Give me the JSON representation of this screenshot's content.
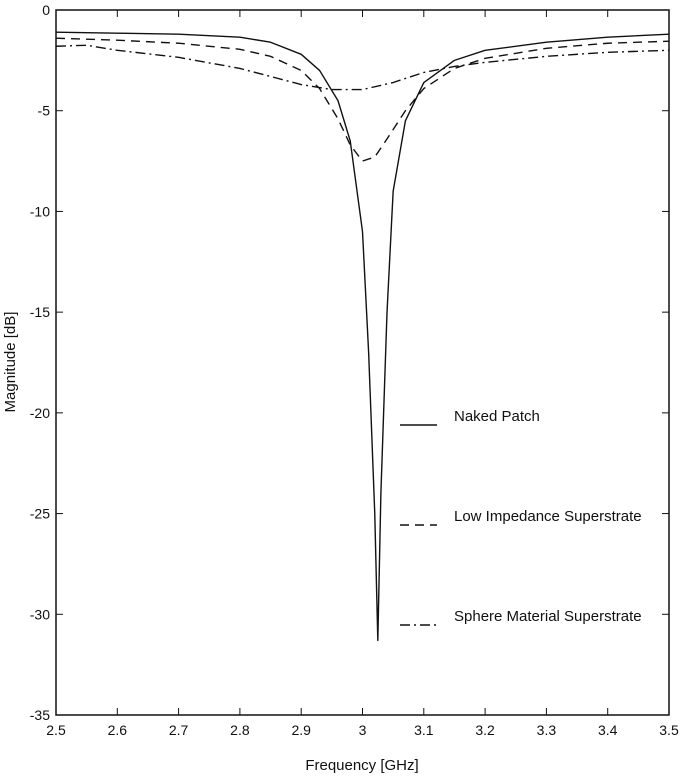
{
  "chart_data": {
    "type": "line",
    "title": "",
    "xlabel": "Frequency  [GHz]",
    "ylabel": "Magnitude  [dB]",
    "xlim": [
      2.5,
      3.5
    ],
    "ylim": [
      -35,
      0
    ],
    "xticks": [
      2.5,
      2.6,
      2.7,
      2.8,
      2.9,
      3,
      3.1,
      3.2,
      3.3,
      3.4,
      3.5
    ],
    "xtick_labels": [
      "2.5",
      "2.6",
      "2.7",
      "2.8",
      "2.9",
      "3",
      "3.1",
      "3.2",
      "3.3",
      "3.4",
      "3.5"
    ],
    "yticks": [
      0,
      -5,
      -10,
      -15,
      -20,
      -25,
      -30,
      -35
    ],
    "ytick_labels": [
      "0",
      "-5",
      "-10",
      "-15",
      "-20",
      "-25",
      "-30",
      "-35"
    ],
    "grid": false,
    "legend_position": "center-right",
    "series": [
      {
        "name": "Naked Patch",
        "style": "solid",
        "color": "#111111",
        "points": [
          [
            2.5,
            -1.1
          ],
          [
            2.6,
            -1.15
          ],
          [
            2.7,
            -1.2
          ],
          [
            2.8,
            -1.35
          ],
          [
            2.85,
            -1.6
          ],
          [
            2.9,
            -2.2
          ],
          [
            2.93,
            -3.0
          ],
          [
            2.96,
            -4.5
          ],
          [
            2.98,
            -6.5
          ],
          [
            3.0,
            -11.0
          ],
          [
            3.01,
            -17.0
          ],
          [
            3.02,
            -25.0
          ],
          [
            3.025,
            -31.3
          ],
          [
            3.03,
            -24.0
          ],
          [
            3.04,
            -15.0
          ],
          [
            3.05,
            -9.0
          ],
          [
            3.07,
            -5.5
          ],
          [
            3.1,
            -3.6
          ],
          [
            3.15,
            -2.5
          ],
          [
            3.2,
            -2.0
          ],
          [
            3.3,
            -1.6
          ],
          [
            3.4,
            -1.35
          ],
          [
            3.5,
            -1.2
          ]
        ]
      },
      {
        "name": "Low Impedance Superstrate",
        "style": "dashed",
        "color": "#111111",
        "points": [
          [
            2.5,
            -1.4
          ],
          [
            2.6,
            -1.5
          ],
          [
            2.7,
            -1.65
          ],
          [
            2.8,
            -1.95
          ],
          [
            2.85,
            -2.3
          ],
          [
            2.9,
            -3.0
          ],
          [
            2.93,
            -3.9
          ],
          [
            2.96,
            -5.4
          ],
          [
            2.98,
            -6.7
          ],
          [
            3.0,
            -7.5
          ],
          [
            3.02,
            -7.3
          ],
          [
            3.04,
            -6.4
          ],
          [
            3.07,
            -5.0
          ],
          [
            3.1,
            -3.9
          ],
          [
            3.15,
            -2.9
          ],
          [
            3.2,
            -2.4
          ],
          [
            3.3,
            -1.9
          ],
          [
            3.4,
            -1.65
          ],
          [
            3.5,
            -1.55
          ]
        ]
      },
      {
        "name": "Sphere Material Superstrate",
        "style": "dashdot",
        "color": "#111111",
        "points": [
          [
            2.5,
            -1.8
          ],
          [
            2.55,
            -1.75
          ],
          [
            2.6,
            -2.0
          ],
          [
            2.7,
            -2.35
          ],
          [
            2.8,
            -2.9
          ],
          [
            2.85,
            -3.3
          ],
          [
            2.9,
            -3.7
          ],
          [
            2.95,
            -3.95
          ],
          [
            3.0,
            -3.95
          ],
          [
            3.05,
            -3.6
          ],
          [
            3.1,
            -3.1
          ],
          [
            3.15,
            -2.8
          ],
          [
            3.2,
            -2.6
          ],
          [
            3.3,
            -2.3
          ],
          [
            3.4,
            -2.1
          ],
          [
            3.5,
            -2.0
          ]
        ]
      }
    ]
  }
}
